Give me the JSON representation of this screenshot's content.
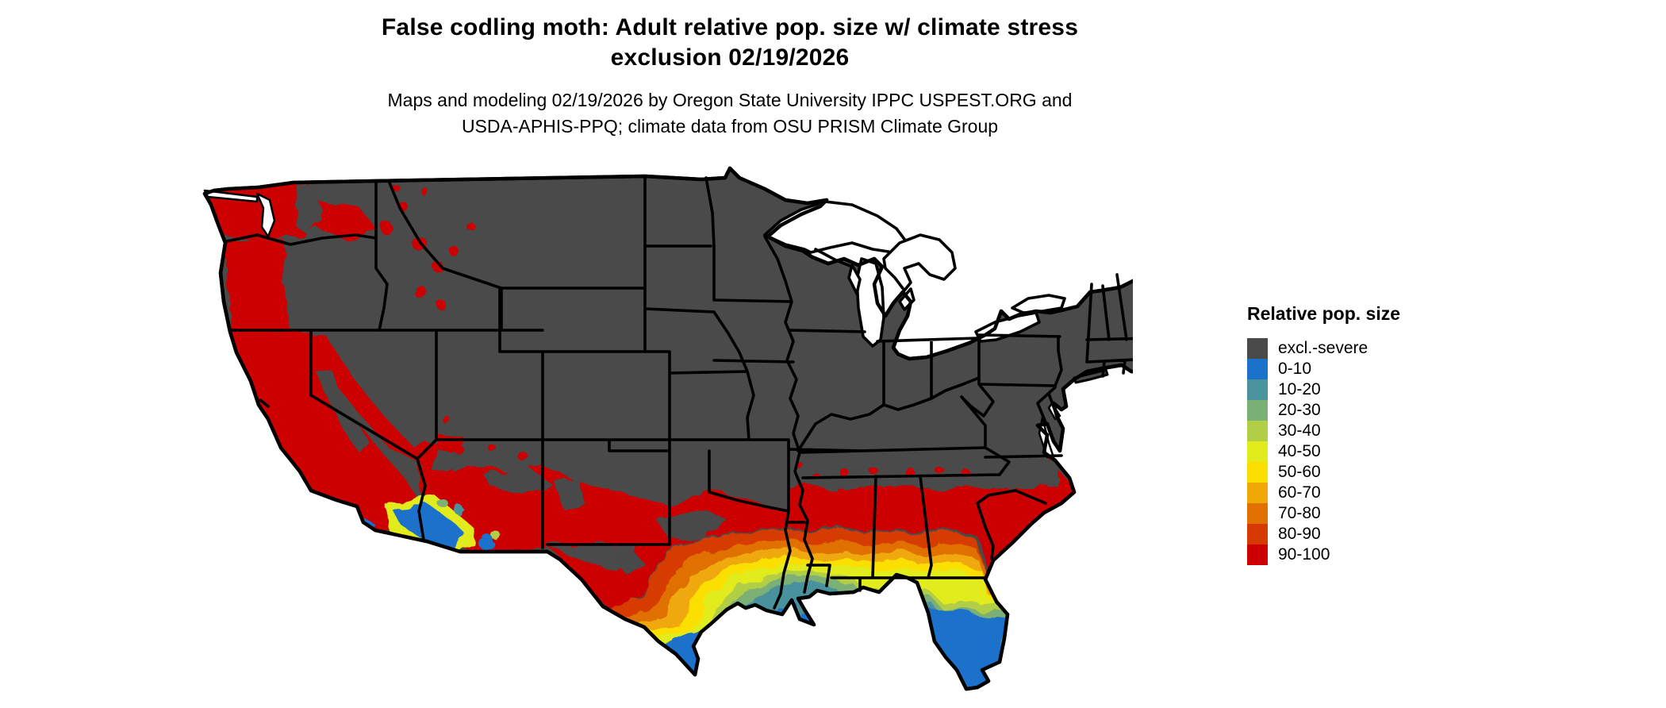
{
  "header": {
    "title_line1": "False codling moth: Adult relative pop. size w/ climate stress",
    "title_line2": "exclusion 02/19/2026",
    "subtitle_line1": "Maps and modeling 02/19/2026 by Oregon State University IPPC USPEST.ORG and",
    "subtitle_line2": "USDA-APHIS-PPQ; climate data from OSU PRISM Climate Group"
  },
  "legend": {
    "title": "Relative pop. size",
    "items": [
      {
        "label": "excl.-severe",
        "color": "#4A4A4A",
        "var": "excl"
      },
      {
        "label": "0-10",
        "color": "#1A72CB",
        "var": "c0"
      },
      {
        "label": "10-20",
        "color": "#4A929D",
        "var": "c10"
      },
      {
        "label": "20-30",
        "color": "#7BB074",
        "var": "c20"
      },
      {
        "label": "30-40",
        "color": "#B2CE46",
        "var": "c30"
      },
      {
        "label": "40-50",
        "color": "#E2EB1C",
        "var": "c40"
      },
      {
        "label": "50-60",
        "color": "#FADF00",
        "var": "c50"
      },
      {
        "label": "60-70",
        "color": "#EFA807",
        "var": "c60"
      },
      {
        "label": "70-80",
        "color": "#E07000",
        "var": "c70"
      },
      {
        "label": "80-90",
        "color": "#D63A00",
        "var": "c80"
      },
      {
        "label": "90-100",
        "color": "#CC0000",
        "var": "c90"
      }
    ]
  },
  "map": {
    "type": "choropleth_raster",
    "region": "Contiguous United States with state boundaries",
    "border_color": "#000000",
    "background_color": "#FFFFFF",
    "excluded_fill": "#4A4A4A",
    "regions": [
      {
        "area": "Pacific coast: western WA, western OR, most of CA",
        "category": "90-100"
      },
      {
        "area": "Interior West, Great Plains, Midwest, Northeast",
        "category": "excl.-severe"
      },
      {
        "area": "Low deserts of SE California and SW Arizona",
        "category": "0-10 with 30-60 fringe"
      },
      {
        "area": "Southern Arizona, southern New Mexico, west Texas",
        "category": "90-100"
      },
      {
        "area": "Texas toward Gulf coast",
        "category": "gradient 90-100 inland to 0-10 at south tip/coast"
      },
      {
        "area": "Gulf states coastal plain (LA, MS, AL, GA)",
        "category": "gradient 90-100 to 10-30 near coast"
      },
      {
        "area": "Florida peninsula",
        "category": "gradient 50-100 in north to 0-10 in south"
      },
      {
        "area": "Atlantic coast of SC/NC and SE Virginia",
        "category": "90-100"
      }
    ]
  }
}
